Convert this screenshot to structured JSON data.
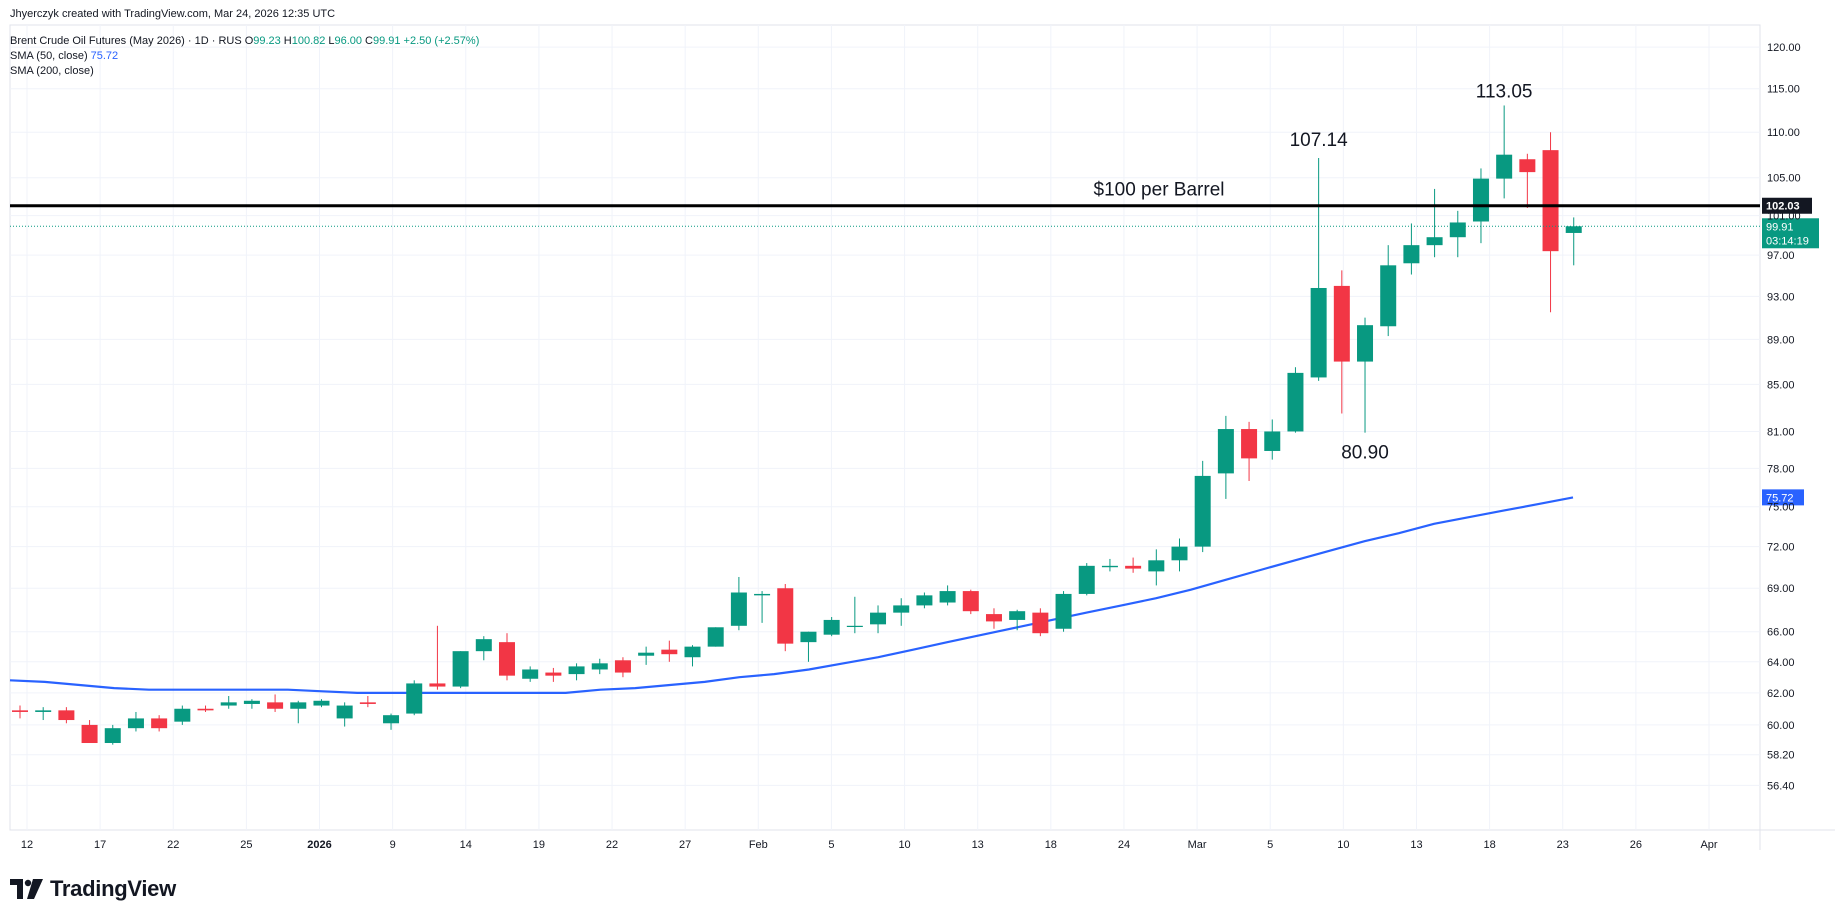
{
  "header": {
    "credit": "Jhyerczyk created with TradingView.com, Mar 24, 2026 12:35 UTC",
    "instrument": "Brent Crude Oil Futures (May 2026) · 1D · RUS",
    "open_label": "O",
    "open_value": "99.23",
    "high_label": "H",
    "high_value": "100.82",
    "low_label": "L",
    "low_value": "96.00",
    "close_label": "C",
    "close_value": "99.91",
    "change": "+2.50 (+2.57%)",
    "sma50_label": "SMA (50, close)",
    "sma50_value": "75.72",
    "sma200_label": "SMA (200, close)"
  },
  "brand": {
    "name": "TradingView"
  },
  "colors": {
    "up": "#089981",
    "down": "#f23645",
    "sma": "#2962ff",
    "level": "#000000"
  },
  "chart_data": {
    "type": "candlestick",
    "title": "Brent Crude Oil Futures (May 2026)",
    "interval": "1D",
    "x_axis": {
      "ticks": [
        "12",
        "17",
        "22",
        "25",
        "2026",
        "9",
        "14",
        "19",
        "22",
        "27",
        "Feb",
        "5",
        "10",
        "13",
        "18",
        "24",
        "Mar",
        "5",
        "10",
        "13",
        "18",
        "23",
        "26",
        "Apr"
      ]
    },
    "y_axis": {
      "ticks": [
        "120.00",
        "115.00",
        "110.00",
        "105.00",
        "101.00",
        "97.00",
        "93.00",
        "89.00",
        "85.00",
        "81.00",
        "78.00",
        "75.00",
        "72.00",
        "69.00",
        "66.00",
        "64.00",
        "62.00",
        "60.00",
        "58.20",
        "56.40"
      ],
      "scale": "log",
      "range": [
        55,
        121
      ]
    },
    "candles": [
      {
        "o": 60.9,
        "h": 61.2,
        "l": 60.4,
        "c": 60.8
      },
      {
        "o": 60.8,
        "h": 61.1,
        "l": 60.3,
        "c": 60.9
      },
      {
        "o": 60.9,
        "h": 61.1,
        "l": 60.1,
        "c": 60.3
      },
      {
        "o": 60.0,
        "h": 60.3,
        "l": 58.9,
        "c": 58.9
      },
      {
        "o": 58.9,
        "h": 60.0,
        "l": 58.8,
        "c": 59.8
      },
      {
        "o": 59.8,
        "h": 60.8,
        "l": 59.6,
        "c": 60.4
      },
      {
        "o": 60.4,
        "h": 60.6,
        "l": 59.6,
        "c": 59.8
      },
      {
        "o": 60.2,
        "h": 61.2,
        "l": 60.0,
        "c": 61.0
      },
      {
        "o": 61.0,
        "h": 61.2,
        "l": 60.8,
        "c": 60.9
      },
      {
        "o": 61.2,
        "h": 61.8,
        "l": 61.0,
        "c": 61.4
      },
      {
        "o": 61.3,
        "h": 61.6,
        "l": 61.0,
        "c": 61.5
      },
      {
        "o": 61.4,
        "h": 61.9,
        "l": 60.8,
        "c": 61.0
      },
      {
        "o": 61.0,
        "h": 61.5,
        "l": 60.1,
        "c": 61.4
      },
      {
        "o": 61.2,
        "h": 61.6,
        "l": 61.1,
        "c": 61.5
      },
      {
        "o": 60.4,
        "h": 61.4,
        "l": 59.9,
        "c": 61.2
      },
      {
        "o": 61.4,
        "h": 61.8,
        "l": 61.1,
        "c": 61.3
      },
      {
        "o": 60.1,
        "h": 60.7,
        "l": 59.7,
        "c": 60.6
      },
      {
        "o": 60.7,
        "h": 62.8,
        "l": 60.6,
        "c": 62.6
      },
      {
        "o": 62.6,
        "h": 66.4,
        "l": 62.2,
        "c": 62.4
      },
      {
        "o": 62.4,
        "h": 64.7,
        "l": 62.3,
        "c": 64.7
      },
      {
        "o": 64.7,
        "h": 65.7,
        "l": 64.1,
        "c": 65.5
      },
      {
        "o": 65.3,
        "h": 65.9,
        "l": 62.8,
        "c": 63.1
      },
      {
        "o": 62.9,
        "h": 63.7,
        "l": 62.7,
        "c": 63.5
      },
      {
        "o": 63.3,
        "h": 63.6,
        "l": 62.7,
        "c": 63.1
      },
      {
        "o": 63.2,
        "h": 63.9,
        "l": 62.8,
        "c": 63.7
      },
      {
        "o": 63.5,
        "h": 64.2,
        "l": 63.2,
        "c": 63.9
      },
      {
        "o": 64.1,
        "h": 64.3,
        "l": 63.0,
        "c": 63.3
      },
      {
        "o": 64.4,
        "h": 65.0,
        "l": 63.8,
        "c": 64.6
      },
      {
        "o": 64.8,
        "h": 65.4,
        "l": 64.0,
        "c": 64.5
      },
      {
        "o": 64.3,
        "h": 65.1,
        "l": 63.7,
        "c": 65.0
      },
      {
        "o": 65.0,
        "h": 66.3,
        "l": 65.0,
        "c": 66.3
      },
      {
        "o": 66.4,
        "h": 69.8,
        "l": 66.1,
        "c": 68.7
      },
      {
        "o": 68.5,
        "h": 68.8,
        "l": 66.6,
        "c": 68.6
      },
      {
        "o": 69.0,
        "h": 69.3,
        "l": 64.7,
        "c": 65.2
      },
      {
        "o": 65.3,
        "h": 66.0,
        "l": 64.0,
        "c": 66.0
      },
      {
        "o": 65.8,
        "h": 67.0,
        "l": 65.7,
        "c": 66.8
      },
      {
        "o": 66.4,
        "h": 68.4,
        "l": 65.9,
        "c": 66.4
      },
      {
        "o": 66.5,
        "h": 67.8,
        "l": 65.9,
        "c": 67.3
      },
      {
        "o": 67.3,
        "h": 68.3,
        "l": 66.4,
        "c": 67.8
      },
      {
        "o": 67.8,
        "h": 68.7,
        "l": 67.6,
        "c": 68.5
      },
      {
        "o": 68.0,
        "h": 69.2,
        "l": 67.8,
        "c": 68.8
      },
      {
        "o": 68.8,
        "h": 68.9,
        "l": 67.2,
        "c": 67.4
      },
      {
        "o": 67.2,
        "h": 67.6,
        "l": 66.2,
        "c": 66.7
      },
      {
        "o": 66.8,
        "h": 67.5,
        "l": 66.1,
        "c": 67.4
      },
      {
        "o": 67.3,
        "h": 67.6,
        "l": 65.7,
        "c": 65.9
      },
      {
        "o": 66.2,
        "h": 68.8,
        "l": 66.0,
        "c": 68.6
      },
      {
        "o": 68.6,
        "h": 70.8,
        "l": 68.5,
        "c": 70.6
      },
      {
        "o": 70.5,
        "h": 71.1,
        "l": 70.2,
        "c": 70.6
      },
      {
        "o": 70.6,
        "h": 71.2,
        "l": 70.1,
        "c": 70.4
      },
      {
        "o": 70.2,
        "h": 71.8,
        "l": 69.2,
        "c": 71.0
      },
      {
        "o": 71.0,
        "h": 72.6,
        "l": 70.2,
        "c": 72.0
      },
      {
        "o": 72.0,
        "h": 78.6,
        "l": 71.6,
        "c": 77.4
      },
      {
        "o": 77.6,
        "h": 82.3,
        "l": 75.6,
        "c": 81.2
      },
      {
        "o": 81.2,
        "h": 81.8,
        "l": 77.0,
        "c": 78.8
      },
      {
        "o": 79.4,
        "h": 82.0,
        "l": 78.7,
        "c": 81.0
      },
      {
        "o": 81.0,
        "h": 86.5,
        "l": 80.9,
        "c": 86.0
      },
      {
        "o": 85.6,
        "h": 107.14,
        "l": 85.3,
        "c": 93.8
      },
      {
        "o": 94.0,
        "h": 95.5,
        "l": 82.5,
        "c": 87.0
      },
      {
        "o": 87.0,
        "h": 91.0,
        "l": 80.9,
        "c": 90.3
      },
      {
        "o": 90.2,
        "h": 98.0,
        "l": 89.3,
        "c": 96.0
      },
      {
        "o": 96.2,
        "h": 100.2,
        "l": 95.1,
        "c": 98.0
      },
      {
        "o": 98.0,
        "h": 103.8,
        "l": 96.8,
        "c": 98.8
      },
      {
        "o": 98.8,
        "h": 101.5,
        "l": 96.8,
        "c": 100.3
      },
      {
        "o": 100.4,
        "h": 106.0,
        "l": 98.2,
        "c": 104.9
      },
      {
        "o": 104.9,
        "h": 113.05,
        "l": 102.8,
        "c": 107.5
      },
      {
        "o": 107.0,
        "h": 107.6,
        "l": 101.8,
        "c": 105.6
      },
      {
        "o": 108.0,
        "h": 110.0,
        "l": 91.5,
        "c": 97.4
      },
      {
        "o": 99.23,
        "h": 100.82,
        "l": 96.0,
        "c": 99.91
      }
    ],
    "indicators": [
      {
        "name": "SMA (50, close)",
        "last": 75.72,
        "values": [
          62.8,
          62.7,
          62.5,
          62.3,
          62.2,
          62.2,
          62.2,
          62.2,
          62.2,
          62.1,
          62.0,
          62.0,
          62.0,
          62.0,
          62.0,
          62.0,
          62.0,
          62.2,
          62.3,
          62.5,
          62.7,
          63.0,
          63.2,
          63.5,
          63.9,
          64.3,
          64.8,
          65.3,
          65.8,
          66.3,
          66.8,
          67.3,
          67.8,
          68.3,
          68.9,
          69.6,
          70.3,
          71.0,
          71.7,
          72.4,
          73.0,
          73.7,
          74.2,
          74.7,
          75.2,
          75.72
        ]
      }
    ],
    "levels": [
      {
        "label": "$100 per Barrel",
        "value": 102.03,
        "axis_label": "102.03"
      }
    ],
    "annotations": [
      "107.14",
      "113.05",
      "80.90"
    ],
    "last_price": {
      "value": "99.91",
      "countdown": "03:14:19"
    }
  }
}
